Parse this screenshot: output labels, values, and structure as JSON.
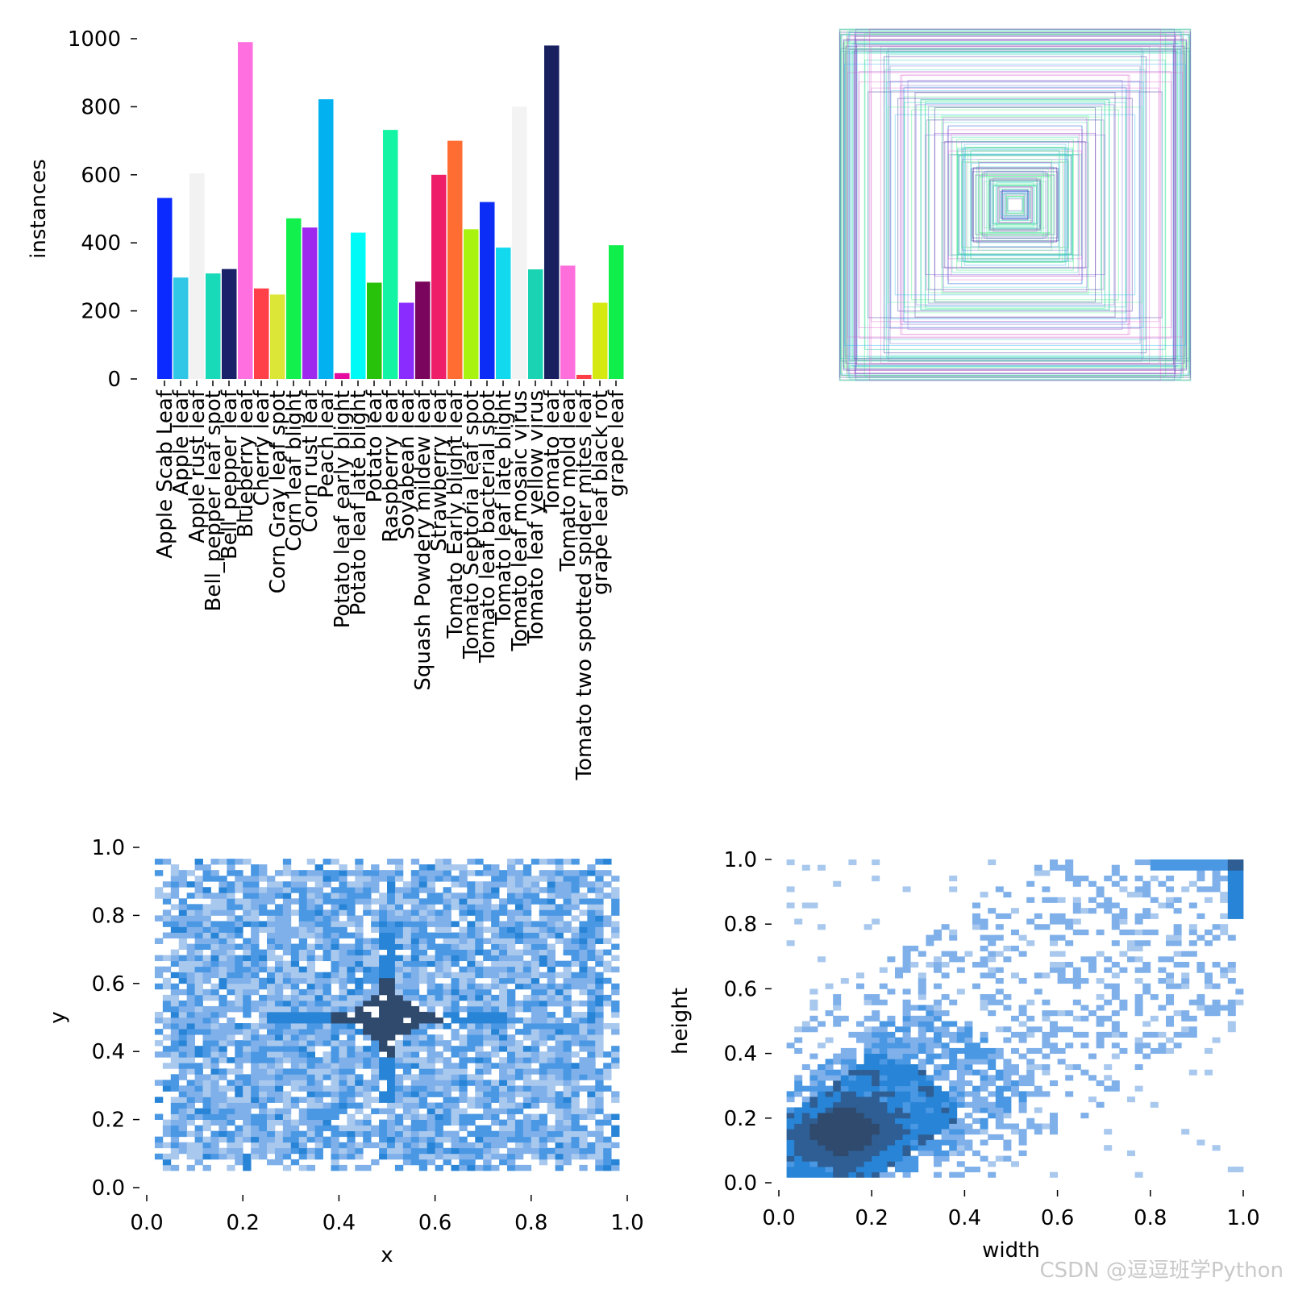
{
  "watermark": "CSDN @逗逗班学Python",
  "chart_data": [
    {
      "type": "bar",
      "ylabel": "instances",
      "ylim": [
        0,
        1000
      ],
      "yticks": [
        "0",
        "200",
        "400",
        "600",
        "800",
        "1000"
      ],
      "categories": [
        "Apple Scab Leaf",
        "Apple leaf",
        "Apple rust leaf",
        "Bell_pepper leaf spot",
        "Bell_pepper leaf",
        "Blueberry leaf",
        "Cherry leaf",
        "Corn Gray leaf spot",
        "Corn leaf blight",
        "Corn rust leaf",
        "Peach leaf",
        "Potato leaf early blight",
        "Potato leaf late blight",
        "Potato leaf",
        "Raspberry leaf",
        "Soyabean leaf",
        "Squash Powdery mildew leaf",
        "Strawberry leaf",
        "Tomato Early blight leaf",
        "Tomato Septoria leaf spot",
        "Tomato leaf bacterial spot",
        "Tomato leaf late blight",
        "Tomato leaf mosaic virus",
        "Tomato leaf yellow virus",
        "Tomato leaf",
        "Tomato mold leaf",
        "Tomato two spotted spider mites leaf",
        "grape leaf black rot",
        "grape leaf"
      ],
      "values": [
        532,
        298,
        604,
        310,
        323,
        990,
        266,
        248,
        472,
        445,
        822,
        17,
        430,
        283,
        732,
        224,
        286,
        600,
        700,
        440,
        520,
        386,
        800,
        322,
        980,
        333,
        12,
        224,
        393
      ],
      "colors": [
        "#0a2aff",
        "#30c6e6",
        "#f2f2f2",
        "#18d9b8",
        "#1a2369",
        "#ff6fe0",
        "#ff4048",
        "#dce636",
        "#12f04e",
        "#9f28ef",
        "#02b2f0",
        "#e60a9e",
        "#00fbf7",
        "#28c20a",
        "#13f5a4",
        "#8a2cfd",
        "#7a055d",
        "#ef1e68",
        "#ff6d32",
        "#a8f30f",
        "#0b2df5",
        "#12d9ee",
        "#f3f3f3",
        "#1ad3b2",
        "#182060",
        "#fe6fdc",
        "#ff3e46",
        "#d5e80f",
        "#10ee4c"
      ]
    },
    {
      "type": "boxes",
      "note_colors": [
        "#2aff6a",
        "#40e0d0",
        "#3a2aa8",
        "#b060d0",
        "#2ac0f0"
      ]
    },
    {
      "type": "heatmap",
      "xlabel": "x",
      "ylabel": "y",
      "xlim": [
        0,
        1
      ],
      "ylim": [
        0,
        1
      ],
      "xticks": [
        "0.0",
        "0.2",
        "0.4",
        "0.6",
        "0.8",
        "1.0"
      ],
      "yticks": [
        "0.0",
        "0.2",
        "0.4",
        "0.6",
        "0.8",
        "1.0"
      ],
      "x_range": [
        0.02,
        0.98
      ],
      "y_range": [
        0.05,
        0.96
      ],
      "peak": [
        0.5,
        0.5
      ]
    },
    {
      "type": "heatmap",
      "xlabel": "width",
      "ylabel": "height",
      "xlim": [
        0,
        1
      ],
      "ylim": [
        0,
        1
      ],
      "xticks": [
        "0.0",
        "0.2",
        "0.4",
        "0.6",
        "0.8",
        "1.0"
      ],
      "yticks": [
        "0.0",
        "0.2",
        "0.4",
        "0.6",
        "0.8",
        "1.0"
      ],
      "peak": [
        0.12,
        0.15
      ]
    }
  ]
}
